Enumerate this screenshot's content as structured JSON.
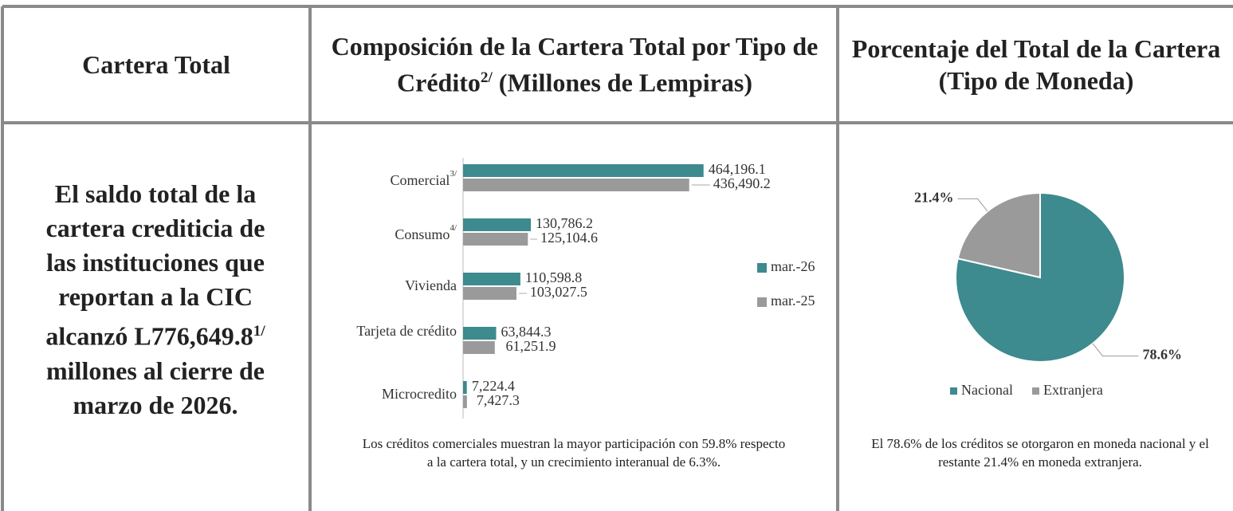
{
  "headers": {
    "col1": "Cartera Total",
    "col2": {
      "text": "Composición de la Cartera Total por Tipo de Crédito",
      "sup": "2/",
      "rest": " (Millones de Lempiras)"
    },
    "col3": "Porcentaje del Total de la Cartera (Tipo de Moneda)"
  },
  "summary": {
    "text": "El saldo total de la cartera crediticia de las instituciones que reportan a la CIC alcanzó L776,649.8",
    "sup": "1/",
    "rest": " millones al cierre de marzo de 2026."
  },
  "chart_data": [
    {
      "type": "bar",
      "orientation": "horizontal",
      "categories": [
        "Comercial",
        "Consumo",
        "Vivienda",
        "Tarjeta de crédito",
        "Microcredito"
      ],
      "category_notes": [
        "3/",
        "4/",
        null,
        null,
        null
      ],
      "series": [
        {
          "name": "mar.-26",
          "color": "#3d8a8f",
          "values": [
            464196.1,
            130786.2,
            110598.8,
            63844.3,
            7224.4
          ],
          "value_labels": [
            "464,196.1",
            "130,786.2",
            "110,598.8",
            "63,844.3",
            "7,224.4"
          ]
        },
        {
          "name": "mar.-25",
          "color": "#9a9a9a",
          "values": [
            436490.2,
            125104.6,
            103027.5,
            61251.9,
            7427.3
          ],
          "value_labels": [
            "436,490.2",
            "125,104.6",
            "103,027.5",
            "61,251.9",
            "7,427.3"
          ]
        }
      ],
      "xlim": [
        0,
        500000
      ],
      "legend": "right",
      "note": "Los créditos comerciales muestran la mayor participación con 59.8% respecto a la cartera total, y un crecimiento interanual de 6.3%."
    },
    {
      "type": "pie",
      "categories": [
        "Nacional",
        "Extranjera"
      ],
      "values": [
        78.6,
        21.4
      ],
      "value_labels": [
        "78.6%",
        "21.4%"
      ],
      "colors": [
        "#3d8a8f",
        "#9a9a9a"
      ],
      "legend": "bottom",
      "note": "El 78.6% de los créditos se otorgaron en moneda nacional y el restante 21.4% en moneda extranjera."
    }
  ]
}
